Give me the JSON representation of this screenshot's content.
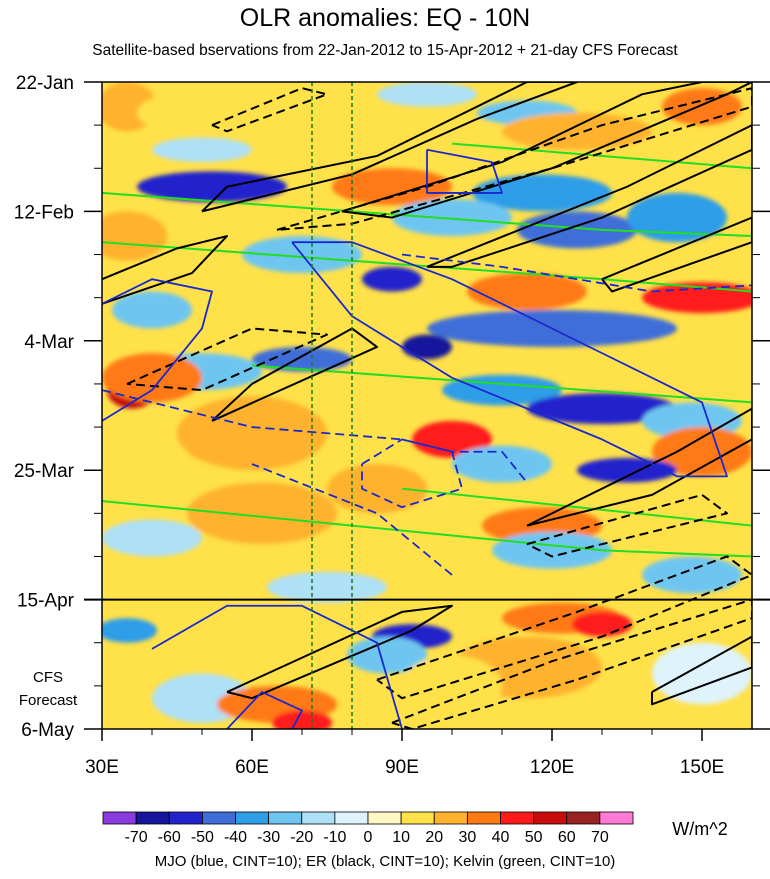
{
  "chart_data": {
    "type": "heatmap",
    "title": "OLR anomalies: EQ - 10N",
    "subtitle": "Satellite-based bservations from 22-Jan-2012 to 15-Apr-2012 + 21-day CFS Forecast",
    "footnote": "MJO (blue, CINT=10); ER (black, CINT=10); Kelvin (green, CINT=10)",
    "x_axis": {
      "unit": "degrees longitude",
      "range": [
        30,
        160
      ],
      "ticks": [
        {
          "value": 30,
          "label": "30E"
        },
        {
          "value": 60,
          "label": "60E"
        },
        {
          "value": 90,
          "label": "90E"
        },
        {
          "value": 120,
          "label": "120E"
        },
        {
          "value": 150,
          "label": "150E"
        }
      ]
    },
    "y_axis": {
      "unit": "days since 22-Jan-2012 (downward)",
      "range": [
        0,
        105
      ],
      "ticks": [
        {
          "value": 0,
          "label": "22-Jan"
        },
        {
          "value": 21,
          "label": "12-Feb"
        },
        {
          "value": 42,
          "label": "4-Mar"
        },
        {
          "value": 63,
          "label": "25-Mar"
        },
        {
          "value": 84,
          "label": "15-Apr"
        },
        {
          "value": 105,
          "label": "6-May"
        }
      ],
      "forecast_start_label": "15-Apr",
      "forecast_label": [
        "CFS",
        "Forecast"
      ]
    },
    "reference_lines": [
      72,
      80
    ],
    "colorbar": {
      "unit": "W/m^2",
      "levels": [
        -70,
        -60,
        -50,
        -40,
        -30,
        -20,
        -10,
        0,
        10,
        20,
        30,
        40,
        50,
        60,
        70
      ],
      "colors": [
        "#8a3be0",
        "#16169c",
        "#2323cc",
        "#3f6ed8",
        "#2e9ee8",
        "#6ec6f0",
        "#aee0f6",
        "#dff3fa",
        "#fff8c4",
        "#ffe14a",
        "#ffb22e",
        "#ff7a14",
        "#ff1a1a",
        "#c80c0c",
        "#992222",
        "#ff7ad6"
      ]
    },
    "series_colors": {
      "MJO": "#1a28d0",
      "ER": "#000000",
      "Kelvin": "#22dd22"
    },
    "features": [
      {
        "day": 1.5,
        "lon": 57,
        "value": 10,
        "dlon": 10,
        "dday": 1.2
      },
      {
        "day": 2,
        "lon": 95,
        "value": -20,
        "dlon": 10,
        "dday": 2
      },
      {
        "day": 4,
        "lon": 35,
        "value": 20,
        "dlon": 6,
        "dday": 4
      },
      {
        "day": 5,
        "lon": 45,
        "value": 10,
        "dlon": 8,
        "dday": 3
      },
      {
        "day": 5,
        "lon": 115,
        "value": -30,
        "dlon": 10,
        "dday": 2
      },
      {
        "day": 4,
        "lon": 150,
        "value": 30,
        "dlon": 8,
        "dday": 3
      },
      {
        "day": 8,
        "lon": 125,
        "value": 20,
        "dlon": 15,
        "dday": 3
      },
      {
        "day": 11,
        "lon": 50,
        "value": -20,
        "dlon": 10,
        "dday": 2
      },
      {
        "day": 17,
        "lon": 52,
        "value": -60,
        "dlon": 15,
        "dday": 2.5
      },
      {
        "day": 17,
        "lon": 88,
        "value": 30,
        "dlon": 12,
        "dday": 3
      },
      {
        "day": 18,
        "lon": 118,
        "value": -40,
        "dlon": 14,
        "dday": 3
      },
      {
        "day": 22,
        "lon": 100,
        "value": -30,
        "dlon": 12,
        "dday": 3
      },
      {
        "day": 24,
        "lon": 125,
        "value": -50,
        "dlon": 12,
        "dday": 3
      },
      {
        "day": 22,
        "lon": 145,
        "value": -40,
        "dlon": 10,
        "dday": 4
      },
      {
        "day": 25,
        "lon": 35,
        "value": 20,
        "dlon": 8,
        "dday": 4
      },
      {
        "day": 28,
        "lon": 70,
        "value": -30,
        "dlon": 12,
        "dday": 3
      },
      {
        "day": 32,
        "lon": 88,
        "value": -60,
        "dlon": 6,
        "dday": 2
      },
      {
        "day": 34,
        "lon": 115,
        "value": 30,
        "dlon": 12,
        "dday": 3
      },
      {
        "day": 35,
        "lon": 150,
        "value": 40,
        "dlon": 12,
        "dday": 2.5
      },
      {
        "day": 37,
        "lon": 40,
        "value": -30,
        "dlon": 8,
        "dday": 3
      },
      {
        "day": 40,
        "lon": 120,
        "value": -50,
        "dlon": 25,
        "dday": 3
      },
      {
        "day": 43,
        "lon": 95,
        "value": -70,
        "dlon": 5,
        "dday": 2
      },
      {
        "day": 45,
        "lon": 70,
        "value": -50,
        "dlon": 10,
        "dday": 2
      },
      {
        "day": 47,
        "lon": 50,
        "value": -30,
        "dlon": 12,
        "dday": 3
      },
      {
        "day": 50,
        "lon": 36,
        "value": 50,
        "dlon": 5,
        "dday": 3
      },
      {
        "day": 48,
        "lon": 40,
        "value": 30,
        "dlon": 10,
        "dday": 4
      },
      {
        "day": 50,
        "lon": 110,
        "value": -40,
        "dlon": 12,
        "dday": 2.5
      },
      {
        "day": 53,
        "lon": 130,
        "value": -60,
        "dlon": 15,
        "dday": 2.5
      },
      {
        "day": 55,
        "lon": 148,
        "value": -30,
        "dlon": 10,
        "dday": 3
      },
      {
        "day": 57,
        "lon": 60,
        "value": 20,
        "dlon": 15,
        "dday": 6
      },
      {
        "day": 58,
        "lon": 100,
        "value": 40,
        "dlon": 8,
        "dday": 3
      },
      {
        "day": 60,
        "lon": 150,
        "value": 30,
        "dlon": 10,
        "dday": 4
      },
      {
        "day": 62,
        "lon": 110,
        "value": -30,
        "dlon": 10,
        "dday": 3
      },
      {
        "day": 63,
        "lon": 135,
        "value": -60,
        "dlon": 10,
        "dday": 2
      },
      {
        "day": 66,
        "lon": 85,
        "value": 20,
        "dlon": 10,
        "dday": 4
      },
      {
        "day": 70,
        "lon": 62,
        "value": 20,
        "dlon": 15,
        "dday": 5
      },
      {
        "day": 72,
        "lon": 118,
        "value": 30,
        "dlon": 12,
        "dday": 3
      },
      {
        "day": 74,
        "lon": 40,
        "value": -20,
        "dlon": 10,
        "dday": 3
      },
      {
        "day": 76,
        "lon": 120,
        "value": -30,
        "dlon": 12,
        "dday": 3
      },
      {
        "day": 80,
        "lon": 148,
        "value": -30,
        "dlon": 10,
        "dday": 3
      },
      {
        "day": 82,
        "lon": 75,
        "value": -20,
        "dlon": 12,
        "dday": 2.5
      },
      {
        "day": 87,
        "lon": 122,
        "value": 30,
        "dlon": 12,
        "dday": 2.5
      },
      {
        "day": 88,
        "lon": 130,
        "value": 40,
        "dlon": 6,
        "dday": 2
      },
      {
        "day": 89,
        "lon": 35,
        "value": -40,
        "dlon": 6,
        "dday": 2
      },
      {
        "day": 90,
        "lon": 92,
        "value": -60,
        "dlon": 8,
        "dday": 2
      },
      {
        "day": 93,
        "lon": 87,
        "value": -30,
        "dlon": 8,
        "dday": 3
      },
      {
        "day": 95,
        "lon": 115,
        "value": 20,
        "dlon": 15,
        "dday": 5
      },
      {
        "day": 96,
        "lon": 150,
        "value": -10,
        "dlon": 10,
        "dday": 5
      },
      {
        "day": 100,
        "lon": 50,
        "value": -20,
        "dlon": 10,
        "dday": 4
      },
      {
        "day": 101,
        "lon": 65,
        "value": 30,
        "dlon": 12,
        "dday": 3
      },
      {
        "day": 104,
        "lon": 70,
        "value": 40,
        "dlon": 6,
        "dday": 2
      },
      {
        "day": 98,
        "lon": 100,
        "value": 10,
        "dlon": 10,
        "dday": 5
      }
    ],
    "contours": [
      {
        "type": "Kelvin",
        "points": [
          [
            30,
            18
          ],
          [
            80,
            21
          ],
          [
            130,
            24
          ],
          [
            160,
            25
          ]
        ]
      },
      {
        "type": "Kelvin",
        "points": [
          [
            30,
            26
          ],
          [
            80,
            29
          ],
          [
            130,
            32
          ],
          [
            160,
            34
          ]
        ]
      },
      {
        "type": "Kelvin",
        "points": [
          [
            60,
            46
          ],
          [
            110,
            49
          ],
          [
            160,
            52
          ]
        ]
      },
      {
        "type": "Kelvin",
        "points": [
          [
            30,
            68
          ],
          [
            80,
            72
          ],
          [
            130,
            76
          ],
          [
            160,
            77
          ]
        ]
      },
      {
        "type": "Kelvin",
        "points": [
          [
            90,
            66
          ],
          [
            160,
            72
          ]
        ]
      },
      {
        "type": "Kelvin",
        "points": [
          [
            100,
            10
          ],
          [
            160,
            14
          ]
        ]
      },
      {
        "type": "ER",
        "points": [
          [
            30,
            36
          ],
          [
            48,
            31
          ],
          [
            55,
            25
          ],
          [
            45,
            27
          ],
          [
            30,
            32
          ]
        ]
      },
      {
        "type": "ER",
        "points": [
          [
            50,
            21
          ],
          [
            80,
            15
          ],
          [
            105,
            6
          ],
          [
            125,
            0
          ],
          [
            115,
            0
          ],
          [
            85,
            12
          ],
          [
            55,
            17
          ],
          [
            50,
            21
          ]
        ]
      },
      {
        "type": "ER",
        "points": [
          [
            78,
            21
          ],
          [
            110,
            13
          ],
          [
            138,
            2
          ],
          [
            150,
            0
          ],
          [
            160,
            0
          ],
          [
            155,
            2
          ],
          [
            120,
            14
          ],
          [
            88,
            22
          ],
          [
            78,
            21
          ]
        ]
      },
      {
        "type": "ER",
        "points": [
          [
            95,
            30
          ],
          [
            135,
            17
          ],
          [
            160,
            7
          ],
          [
            160,
            11
          ],
          [
            130,
            22
          ],
          [
            100,
            30
          ],
          [
            95,
            30
          ]
        ]
      },
      {
        "type": "ER",
        "points": [
          [
            52,
            55
          ],
          [
            85,
            43
          ],
          [
            80,
            40
          ],
          [
            60,
            49
          ],
          [
            52,
            55
          ]
        ]
      },
      {
        "type": "ER",
        "points": [
          [
            115,
            72
          ],
          [
            145,
            60
          ],
          [
            160,
            53
          ],
          [
            160,
            58
          ],
          [
            140,
            67
          ],
          [
            115,
            72
          ]
        ]
      },
      {
        "type": "ER",
        "points": [
          [
            55,
            99
          ],
          [
            90,
            86
          ],
          [
            100,
            85
          ],
          [
            92,
            89
          ],
          [
            60,
            100
          ],
          [
            55,
            99
          ]
        ]
      },
      {
        "type": "ER",
        "points": [
          [
            140,
            99
          ],
          [
            160,
            90
          ],
          [
            160,
            95
          ],
          [
            140,
            101
          ],
          [
            140,
            99
          ]
        ]
      },
      {
        "type": "ER",
        "points": [
          [
            130,
            32
          ],
          [
            160,
            22
          ],
          [
            160,
            26
          ],
          [
            132,
            34
          ],
          [
            130,
            32
          ]
        ]
      },
      {
        "type": "ER_neg",
        "points": [
          [
            52,
            7
          ],
          [
            70,
            1
          ],
          [
            75,
            2
          ],
          [
            55,
            8
          ],
          [
            52,
            7
          ]
        ]
      },
      {
        "type": "ER_neg",
        "points": [
          [
            65,
            24
          ],
          [
            95,
            17
          ],
          [
            130,
            7
          ],
          [
            160,
            1
          ],
          [
            160,
            4
          ],
          [
            120,
            14
          ],
          [
            80,
            23
          ],
          [
            65,
            24
          ]
        ]
      },
      {
        "type": "ER_neg",
        "points": [
          [
            35,
            49
          ],
          [
            60,
            40
          ],
          [
            75,
            41
          ],
          [
            50,
            50
          ],
          [
            35,
            49
          ]
        ]
      },
      {
        "type": "ER_neg",
        "points": [
          [
            115,
            75
          ],
          [
            150,
            67
          ],
          [
            155,
            70
          ],
          [
            120,
            77
          ],
          [
            115,
            75
          ]
        ]
      },
      {
        "type": "ER_neg",
        "points": [
          [
            85,
            97
          ],
          [
            125,
            86
          ],
          [
            155,
            77
          ],
          [
            160,
            80
          ],
          [
            130,
            90
          ],
          [
            90,
            100
          ],
          [
            85,
            97
          ]
        ]
      },
      {
        "type": "ER_neg",
        "points": [
          [
            88,
            104
          ],
          [
            120,
            94
          ],
          [
            160,
            84
          ],
          [
            160,
            87
          ],
          [
            125,
            97
          ],
          [
            92,
            105
          ],
          [
            88,
            104
          ]
        ]
      },
      {
        "type": "MJO",
        "points": [
          [
            30,
            55
          ],
          [
            40,
            50
          ],
          [
            50,
            40
          ],
          [
            52,
            34
          ],
          [
            40,
            32
          ],
          [
            30,
            36
          ]
        ]
      },
      {
        "type": "MJO",
        "points": [
          [
            68,
            26
          ],
          [
            80,
            38
          ],
          [
            100,
            48
          ],
          [
            130,
            58
          ],
          [
            145,
            64
          ],
          [
            155,
            64
          ],
          [
            150,
            52
          ],
          [
            130,
            44
          ],
          [
            100,
            32
          ],
          [
            80,
            26
          ],
          [
            68,
            26
          ]
        ]
      },
      {
        "type": "MJO",
        "points": [
          [
            95,
            11
          ],
          [
            108,
            13
          ],
          [
            110,
            18
          ],
          [
            95,
            18
          ],
          [
            95,
            11
          ]
        ]
      },
      {
        "type": "MJO",
        "points": [
          [
            40,
            92
          ],
          [
            55,
            85
          ],
          [
            70,
            85
          ],
          [
            85,
            91
          ],
          [
            90,
            105
          ]
        ]
      },
      {
        "type": "MJO",
        "points": [
          [
            55,
            105
          ],
          [
            62,
            99
          ],
          [
            70,
            102
          ],
          [
            68,
            105
          ]
        ]
      },
      {
        "type": "MJO_neg",
        "points": [
          [
            30,
            50
          ],
          [
            60,
            56
          ],
          [
            90,
            58
          ],
          [
            100,
            60
          ],
          [
            110,
            60
          ],
          [
            115,
            65
          ]
        ]
      },
      {
        "type": "MJO_neg",
        "points": [
          [
            82,
            62
          ],
          [
            90,
            58
          ],
          [
            100,
            60
          ],
          [
            102,
            66
          ],
          [
            90,
            69
          ],
          [
            82,
            66
          ],
          [
            82,
            62
          ]
        ]
      },
      {
        "type": "MJO_neg",
        "points": [
          [
            90,
            28
          ],
          [
            110,
            30
          ],
          [
            140,
            34
          ],
          [
            160,
            33
          ]
        ]
      },
      {
        "type": "MJO_neg",
        "points": [
          [
            100,
            80
          ],
          [
            85,
            70
          ],
          [
            60,
            62
          ]
        ]
      }
    ]
  }
}
